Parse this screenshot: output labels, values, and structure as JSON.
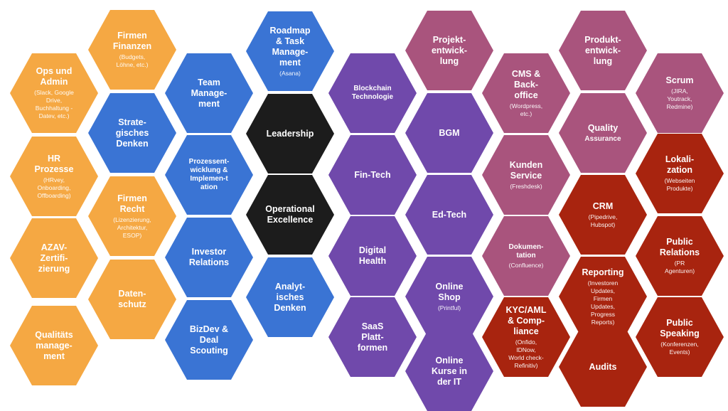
{
  "colors": {
    "orange": "#F5A843",
    "blue": "#3A74D4",
    "black": "#1C1C1C",
    "purple": "#7049AB",
    "pink": "#A9547D",
    "red": "#A8240F"
  },
  "hexes": {
    "firmen_finanzen": {
      "title": "Firmen\nFinanzen",
      "sub": "(Budgets,\nLöhne, etc.)"
    },
    "ops_admin": {
      "title": "Ops und\nAdmin",
      "sub": "(Slack, Google\nDrive,\nBuchhaltung -\nDatev, etc.)"
    },
    "hr_prozesse": {
      "title": "HR\nProzesse",
      "sub": "(HRvey,\nOnboarding,\nOffboarding)"
    },
    "firmen_recht": {
      "title": "Firmen\nRecht",
      "sub": "(Lizenzierung,\nArchitektur,\nESOP)"
    },
    "azav": {
      "title": "AZAV-\nZertifi-\nzierung",
      "sub": ""
    },
    "datenschutz": {
      "title": "Daten-\nschutz",
      "sub": ""
    },
    "qualitaetsmanagement": {
      "title": "Qualitäts\nmanage-\nment",
      "sub": ""
    },
    "team_management": {
      "title": "Team\nManage-\nment",
      "sub": ""
    },
    "strategisches_denken": {
      "title": "Strate-\ngisches\nDenken",
      "sub": ""
    },
    "prozessentwicklung": {
      "title": "Prozessent-\nwicklung &\nImplemen-t\nation",
      "sub": ""
    },
    "investor_relations": {
      "title": "Investor\nRelations",
      "sub": ""
    },
    "bizdev": {
      "title": "BizDev &\nDeal\nScouting",
      "sub": ""
    },
    "roadmap": {
      "title": "Roadmap\n& Task\nManage-\nment",
      "sub": "(Asana)"
    },
    "leadership": {
      "title": "Leadership",
      "sub": ""
    },
    "operational_excellence": {
      "title": "Operational\nExcellence",
      "sub": ""
    },
    "analytisches_denken": {
      "title": "Analyt-\nisches\nDenken",
      "sub": ""
    },
    "blockchain": {
      "title": "Blockchain\nTechnologie",
      "sub": ""
    },
    "fintech": {
      "title": "Fin-Tech",
      "sub": ""
    },
    "digital_health": {
      "title": "Digital\nHealth",
      "sub": ""
    },
    "saas": {
      "title": "SaaS\nPlatt-\nformen",
      "sub": ""
    },
    "projektentwicklung": {
      "title": "Projekt-\nentwick-\nlung",
      "sub": ""
    },
    "bgm": {
      "title": "BGM",
      "sub": ""
    },
    "edtech": {
      "title": "Ed-Tech",
      "sub": ""
    },
    "online_shop": {
      "title": "Online\nShop",
      "sub": "(Printful)"
    },
    "online_kurse": {
      "title": "Online\nKurse in\nder IT",
      "sub": ""
    },
    "cms": {
      "title": "CMS &\nBack-\noffice",
      "sub": "(Wordpress,\netc.)"
    },
    "kunden_service": {
      "title": "Kunden\nService",
      "sub": "(Freshdesk)"
    },
    "dokumentation": {
      "title": "Dokumen-\ntation",
      "sub": "(Confluence)"
    },
    "kyc_aml": {
      "title": "KYC/AML\n& Comp-\nliance",
      "sub": "(Onfido,\nIDNow,\nWorld check-\nRefinitiv)"
    },
    "produktentwicklung": {
      "title": "Produkt-\nentwick-\nlung",
      "sub": ""
    },
    "quality_assurance": {
      "title": "Quality",
      "sub": "Assurance"
    },
    "crm": {
      "title": "CRM",
      "sub": "(Pipedrive,\nHubspot)"
    },
    "reporting": {
      "title": "Reporting",
      "sub": "(Investoren\nUpdates,\nFirmen\nUpdates,\nProgress\nReports)"
    },
    "audits": {
      "title": "Audits",
      "sub": ""
    },
    "scrum": {
      "title": "Scrum",
      "sub": "(JIRA,\nYoutrack,\nRedmine)"
    },
    "lokalization": {
      "title": "Lokali-\nzation",
      "sub": "(Webseiten\nProdukte)"
    },
    "public_relations": {
      "title": "Public\nRelations",
      "sub": "(PR\nAgenturen)"
    },
    "public_speaking": {
      "title": "Public\nSpeaking",
      "sub": "(Konferenzen,\nEvents)"
    }
  }
}
